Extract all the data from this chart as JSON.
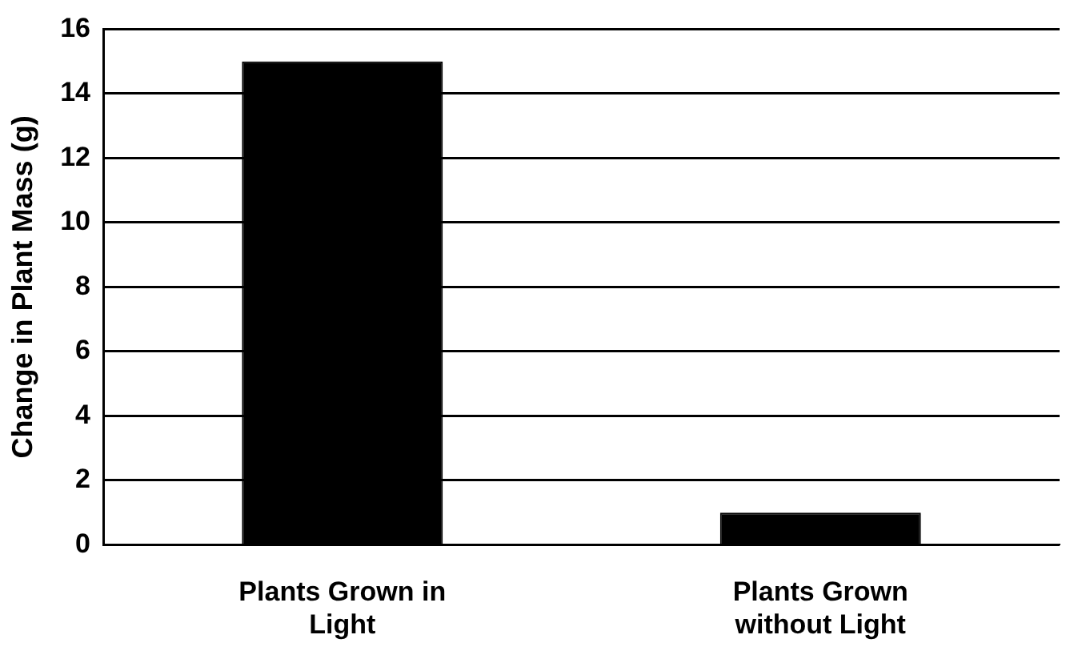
{
  "chart_data": {
    "type": "bar",
    "ylabel": "Change in Plant Mass (g)",
    "categories": [
      "Plants Grown in Light",
      "Plants Grown without Light"
    ],
    "values": [
      15,
      1
    ],
    "color": "#000000",
    "ylim": [
      0,
      16
    ],
    "yticks": [
      0,
      2,
      4,
      6,
      8,
      10,
      12,
      14,
      16
    ],
    "grid": "y",
    "legend": false
  }
}
